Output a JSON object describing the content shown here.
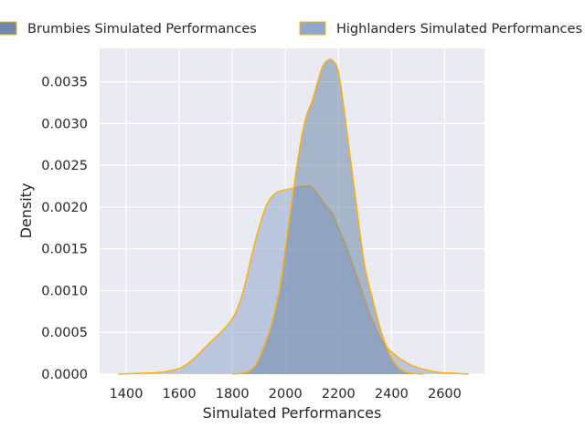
{
  "chart_data": {
    "type": "area",
    "xlabel": "Simulated Performances",
    "ylabel": "Density",
    "xlim": [
      1300,
      2750
    ],
    "ylim": [
      0,
      0.0039
    ],
    "x_ticks": [
      1400,
      1600,
      1800,
      2000,
      2200,
      2400,
      2600
    ],
    "x_tick_labels": [
      "1400",
      "1600",
      "1800",
      "2000",
      "2200",
      "2400",
      "2600"
    ],
    "y_ticks": [
      0,
      0.0005,
      0.001,
      0.0015,
      0.002,
      0.0025,
      0.003,
      0.0035
    ],
    "y_tick_labels": [
      "0.0000",
      "0.0005",
      "0.0010",
      "0.0015",
      "0.0020",
      "0.0025",
      "0.0030",
      "0.0035"
    ],
    "grid": true,
    "legend_position": "top",
    "edge_color": "#FFB000",
    "series": [
      {
        "name": "Brumbies Simulated Performances",
        "color": "#7088AC",
        "points": [
          [
            1800,
            0
          ],
          [
            1850,
            2e-05
          ],
          [
            1880,
            8e-05
          ],
          [
            1900,
            0.00018
          ],
          [
            1925,
            0.00038
          ],
          [
            1950,
            0.00062
          ],
          [
            1980,
            0.00105
          ],
          [
            2000,
            0.0015
          ],
          [
            2030,
            0.0022
          ],
          [
            2060,
            0.00282
          ],
          [
            2080,
            0.0031
          ],
          [
            2100,
            0.00326
          ],
          [
            2120,
            0.00348
          ],
          [
            2140,
            0.00368
          ],
          [
            2160,
            0.00376
          ],
          [
            2180,
            0.00375
          ],
          [
            2200,
            0.00362
          ],
          [
            2220,
            0.0032
          ],
          [
            2240,
            0.0027
          ],
          [
            2260,
            0.00222
          ],
          [
            2280,
            0.00172
          ],
          [
            2300,
            0.00128
          ],
          [
            2330,
            0.00088
          ],
          [
            2360,
            0.00052
          ],
          [
            2390,
            0.00026
          ],
          [
            2420,
            0.0001
          ],
          [
            2450,
            3e-05
          ],
          [
            2480,
            1e-05
          ],
          [
            2520,
            0
          ]
        ]
      },
      {
        "name": "Highlanders Simulated Performances",
        "color": "#8FA8CC",
        "points": [
          [
            1370,
            0
          ],
          [
            1450,
            1e-05
          ],
          [
            1520,
            2e-05
          ],
          [
            1580,
            5e-05
          ],
          [
            1620,
            0.0001
          ],
          [
            1660,
            0.0002
          ],
          [
            1700,
            0.00033
          ],
          [
            1740,
            0.00045
          ],
          [
            1780,
            0.00058
          ],
          [
            1810,
            0.00072
          ],
          [
            1840,
            0.00098
          ],
          [
            1870,
            0.00138
          ],
          [
            1900,
            0.00175
          ],
          [
            1930,
            0.00203
          ],
          [
            1960,
            0.00216
          ],
          [
            1990,
            0.0022
          ],
          [
            2020,
            0.00222
          ],
          [
            2050,
            0.00224
          ],
          [
            2080,
            0.00225
          ],
          [
            2100,
            0.00224
          ],
          [
            2120,
            0.00216
          ],
          [
            2140,
            0.00207
          ],
          [
            2160,
            0.00199
          ],
          [
            2180,
            0.0019
          ],
          [
            2200,
            0.00175
          ],
          [
            2230,
            0.00152
          ],
          [
            2260,
            0.00125
          ],
          [
            2290,
            0.00098
          ],
          [
            2320,
            0.0007
          ],
          [
            2350,
            0.00048
          ],
          [
            2380,
            0.00033
          ],
          [
            2410,
            0.00024
          ],
          [
            2440,
            0.00017
          ],
          [
            2480,
            0.0001
          ],
          [
            2520,
            6e-05
          ],
          [
            2580,
            2e-05
          ],
          [
            2640,
            1e-05
          ],
          [
            2690,
            0
          ]
        ]
      }
    ]
  }
}
